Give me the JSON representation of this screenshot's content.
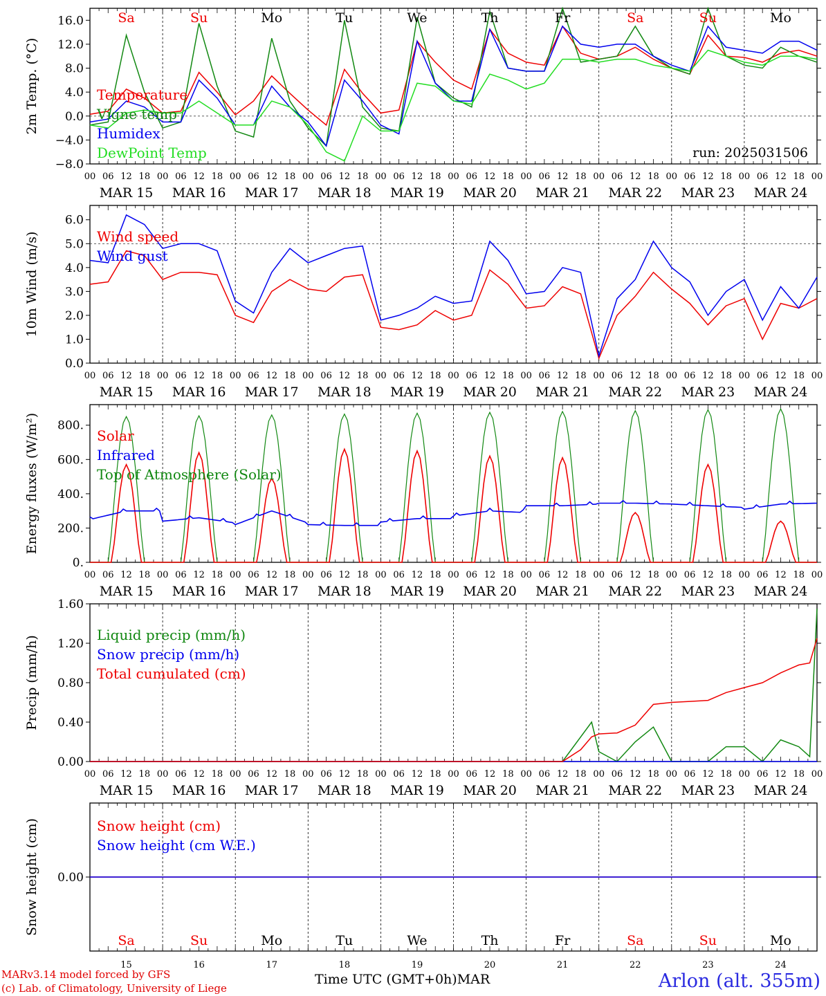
{
  "footer": {
    "model_credit": "MARv3.14 model forced by GFS",
    "lab_credit": "(c) Lab. of Climatology, University of Liege",
    "x_axis_title": "Time UTC (GMT+0h)MAR",
    "station": "Arlon (alt. 355m)"
  },
  "colors": {
    "red": "#ee0000",
    "blue": "#0000ee",
    "dark_green": "#118811",
    "light_green": "#22dd22",
    "axis": "#000000",
    "reference_line": "#444444"
  },
  "chart_data": [
    {
      "type": "line",
      "id": "temperature",
      "ylabel": "2m Temp. (°C)",
      "ylim": [
        -8.0,
        18.0
      ],
      "yticks": [
        "16.0",
        "12.0",
        "8.0",
        "4.0",
        "0.0",
        "−4.0",
        "−8.0"
      ],
      "ytick_values": [
        16,
        12,
        8,
        4,
        0,
        -4,
        -8
      ],
      "reference_line": 0,
      "annotation": "run: 2025031506",
      "top_weekdays": [
        "Sa",
        "Su",
        "Mo",
        "Tu",
        "We",
        "Th",
        "Fr",
        "Sa",
        "Su",
        "Mo"
      ],
      "weekend_flags": [
        true,
        true,
        false,
        false,
        false,
        false,
        false,
        true,
        true,
        false
      ],
      "x": [
        0,
        0.25,
        0.5,
        0.75,
        1.0,
        1.25,
        1.5,
        1.75,
        2.0,
        2.25,
        2.5,
        2.75,
        3.0,
        3.25,
        3.5,
        3.75,
        4.0,
        4.25,
        4.5,
        4.75,
        5.0,
        5.25,
        5.5,
        5.75,
        6.0,
        6.25,
        6.5,
        6.75,
        7.0,
        7.25,
        7.5,
        7.75,
        8.0,
        8.25,
        8.5,
        8.75,
        9.0,
        9.25,
        9.5,
        9.75,
        10.0
      ],
      "series": [
        {
          "name": "Temperature",
          "color": "red",
          "values": [
            0.3,
            0.8,
            4.5,
            3.0,
            0.5,
            0.8,
            7.3,
            4.0,
            0.2,
            2.5,
            6.7,
            3.8,
            1.0,
            -1.5,
            7.8,
            3.8,
            0.5,
            1.0,
            12.5,
            9.0,
            6.0,
            4.5,
            14.5,
            10.5,
            9.0,
            8.5,
            15.0,
            10.5,
            9.5,
            10.0,
            11.5,
            9.5,
            8.0,
            7.0,
            13.5,
            10.0,
            9.8,
            9.0,
            10.5,
            11.0,
            10.0
          ]
        },
        {
          "name": "Vigne temp",
          "color": "dark_green",
          "values": [
            -1.5,
            -1.0,
            13.5,
            4.0,
            -2.0,
            -1.0,
            15.5,
            5.0,
            -2.5,
            -3.5,
            13.0,
            2.5,
            -2.0,
            -5.0,
            16.0,
            1.5,
            -2.0,
            -2.5,
            16.5,
            5.5,
            3.0,
            1.5,
            17.5,
            8.0,
            7.5,
            7.5,
            18.0,
            9.0,
            9.5,
            10.0,
            15.0,
            10.0,
            8.0,
            7.0,
            18.0,
            10.0,
            8.5,
            8.0,
            11.5,
            10.0,
            9.0
          ]
        },
        {
          "name": "Humidex",
          "color": "blue",
          "values": [
            -1.0,
            -0.5,
            2.5,
            1.5,
            -1.0,
            -1.0,
            6.0,
            3.0,
            -1.5,
            -1.5,
            5.0,
            1.5,
            -1.0,
            -5.0,
            6.0,
            2.5,
            -1.5,
            -3.0,
            12.5,
            5.5,
            2.5,
            2.5,
            14.5,
            8.0,
            7.5,
            7.5,
            15.0,
            12.0,
            11.5,
            12.0,
            12.0,
            10.0,
            8.5,
            7.5,
            15.0,
            11.5,
            11.0,
            10.5,
            12.5,
            12.5,
            11.0
          ]
        },
        {
          "name": "DewPoint Temp",
          "color": "light_green",
          "values": [
            -1.5,
            -2.0,
            0.5,
            1.0,
            0.5,
            0.5,
            2.5,
            0.5,
            -1.5,
            -1.5,
            2.5,
            1.5,
            -1.5,
            -6.0,
            -7.5,
            0.0,
            -2.5,
            -2.5,
            5.5,
            5.0,
            2.5,
            2.0,
            7.0,
            6.0,
            4.5,
            5.5,
            9.5,
            9.5,
            9.0,
            9.5,
            9.5,
            8.5,
            8.0,
            7.5,
            11.0,
            10.0,
            9.0,
            8.5,
            10.0,
            10.0,
            9.5
          ]
        }
      ]
    },
    {
      "type": "line",
      "id": "wind",
      "ylabel": "10m Wind (m/s)",
      "ylim": [
        0,
        6.6
      ],
      "yticks": [
        "6.0",
        "5.0",
        "4.0",
        "3.0",
        "2.0",
        "1.0",
        "0.0"
      ],
      "ytick_values": [
        6,
        5,
        4,
        3,
        2,
        1,
        0
      ],
      "reference_line": 5,
      "x": [
        0,
        0.25,
        0.5,
        0.75,
        1.0,
        1.25,
        1.5,
        1.75,
        2.0,
        2.25,
        2.5,
        2.75,
        3.0,
        3.25,
        3.5,
        3.75,
        4.0,
        4.25,
        4.5,
        4.75,
        5.0,
        5.25,
        5.5,
        5.75,
        6.0,
        6.25,
        6.5,
        6.75,
        7.0,
        7.25,
        7.5,
        7.75,
        8.0,
        8.25,
        8.5,
        8.75,
        9.0,
        9.25,
        9.5,
        9.75,
        10.0
      ],
      "series": [
        {
          "name": "Wind speed",
          "color": "red",
          "values": [
            3.3,
            3.4,
            4.7,
            4.5,
            3.5,
            3.8,
            3.8,
            3.7,
            2.0,
            1.7,
            3.0,
            3.5,
            3.1,
            3.0,
            3.6,
            3.7,
            1.5,
            1.4,
            1.6,
            2.2,
            1.8,
            2.0,
            3.9,
            3.3,
            2.3,
            2.4,
            3.2,
            2.9,
            0.2,
            2.0,
            2.8,
            3.8,
            3.1,
            2.5,
            1.6,
            2.4,
            2.7,
            1.0,
            2.5,
            2.3,
            2.7
          ]
        },
        {
          "name": "Wind gust",
          "color": "blue",
          "values": [
            4.3,
            4.2,
            6.2,
            5.8,
            4.8,
            5.0,
            5.0,
            4.7,
            2.6,
            2.1,
            3.8,
            4.8,
            4.2,
            4.5,
            4.8,
            4.9,
            1.8,
            2.0,
            2.3,
            2.8,
            2.5,
            2.6,
            5.1,
            4.3,
            2.9,
            3.0,
            4.0,
            3.8,
            0.3,
            2.7,
            3.5,
            5.1,
            4.0,
            3.4,
            2.0,
            3.0,
            3.5,
            1.8,
            3.2,
            2.3,
            3.6
          ]
        }
      ]
    },
    {
      "type": "line",
      "id": "energy",
      "ylabel": "Energy fluxes (W/m²)",
      "ylim": [
        0,
        920
      ],
      "yticks": [
        "800.",
        "600.",
        "400.",
        "200.",
        "0."
      ],
      "ytick_values": [
        800,
        600,
        400,
        200,
        0
      ],
      "solar_daily_peak": [
        570,
        640,
        490,
        660,
        650,
        620,
        610,
        290,
        570,
        240
      ],
      "toa_daily_peak": [
        850,
        855,
        860,
        865,
        870,
        875,
        880,
        885,
        890,
        895
      ],
      "infrared_daily": [
        [
          250,
          300,
          300
        ],
        [
          240,
          260,
          230
        ],
        [
          220,
          300,
          230
        ],
        [
          220,
          215,
          215
        ],
        [
          235,
          255,
          255
        ],
        [
          270,
          300,
          290
        ],
        [
          330,
          330,
          340
        ],
        [
          345,
          345,
          340
        ],
        [
          340,
          330,
          320
        ],
        [
          310,
          340,
          345
        ]
      ],
      "series": [
        {
          "name": "Solar",
          "color": "red"
        },
        {
          "name": "Infrared",
          "color": "blue"
        },
        {
          "name": "Top of Atmosphere (Solar)",
          "color": "dark_green"
        }
      ]
    },
    {
      "type": "line",
      "id": "precip",
      "ylabel": "Precip (mm/h)",
      "ylim": [
        0,
        1.6
      ],
      "yticks": [
        "1.60",
        "1.20",
        "0.80",
        "0.40",
        "0.00"
      ],
      "ytick_values": [
        1.6,
        1.2,
        0.8,
        0.4,
        0.0
      ],
      "x": [
        0,
        6.0,
        6.5,
        6.75,
        6.9,
        7.0,
        7.25,
        7.5,
        7.75,
        8.0,
        8.25,
        8.5,
        8.75,
        9.0,
        9.25,
        9.5,
        9.75,
        9.9,
        10.0
      ],
      "series": [
        {
          "name": "Liquid precip (mm/h)",
          "color": "dark_green",
          "values": [
            0,
            0,
            0,
            0.25,
            0.4,
            0.1,
            0,
            0.2,
            0.35,
            0,
            0,
            0,
            0.15,
            0.15,
            0,
            0.22,
            0.15,
            0.05,
            1.55
          ]
        },
        {
          "name": "Snow precip (mm/h)",
          "color": "blue",
          "values": [
            0,
            0,
            0,
            0,
            0,
            0,
            0,
            0,
            0,
            0,
            0,
            0,
            0,
            0,
            0,
            0,
            0,
            0,
            0
          ]
        },
        {
          "name": "Total cumulated (cm)",
          "color": "red",
          "values": [
            0,
            0,
            0,
            0.12,
            0.25,
            0.28,
            0.29,
            0.37,
            0.58,
            0.6,
            0.61,
            0.62,
            0.7,
            0.75,
            0.8,
            0.9,
            0.98,
            1.0,
            1.25
          ]
        }
      ]
    },
    {
      "type": "line",
      "id": "snow",
      "ylabel": "Snow height (cm)",
      "ylim": [
        -1,
        1
      ],
      "yticks": [
        "0.00"
      ],
      "ytick_values": [
        0
      ],
      "x": [
        0,
        10
      ],
      "series": [
        {
          "name": "Snow height (cm)",
          "color": "red",
          "values": [
            0,
            0
          ]
        },
        {
          "name": "Snow height (cm W.E.)",
          "color": "blue",
          "values": [
            0,
            0
          ]
        }
      ],
      "bottom_weekdays": [
        "Sa",
        "Su",
        "Mo",
        "Tu",
        "We",
        "Th",
        "Fr",
        "Sa",
        "Su",
        "Mo"
      ],
      "weekend_flags": [
        true,
        true,
        false,
        false,
        false,
        false,
        false,
        true,
        true,
        false
      ],
      "day_numbers": [
        "15",
        "16",
        "17",
        "18",
        "19",
        "20",
        "21",
        "22",
        "23",
        "24"
      ]
    }
  ],
  "time_axis": {
    "hour_labels": [
      "00",
      "06",
      "12",
      "18"
    ],
    "final_label": "00",
    "date_labels": [
      "MAR 15",
      "MAR 16",
      "MAR 17",
      "MAR 18",
      "MAR 19",
      "MAR 20",
      "MAR 21",
      "MAR 22",
      "MAR 23",
      "MAR 24"
    ]
  }
}
